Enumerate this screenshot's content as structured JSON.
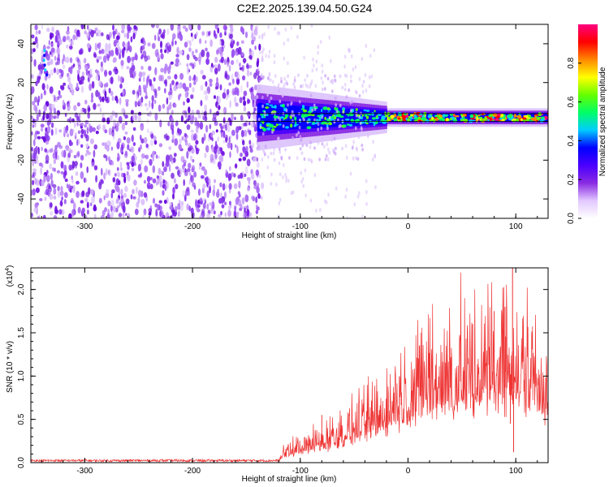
{
  "title": "C2E2.2025.139.04.50.G24",
  "chart_data": [
    {
      "type": "heatmap",
      "xlabel": "Height of straight line (km)",
      "ylabel": "Frequency (Hz)",
      "xlim": [
        -350,
        130
      ],
      "ylim": [
        -50,
        50
      ],
      "x_ticks": [
        "-300",
        "-200",
        "-100",
        "0",
        "100"
      ],
      "y_ticks": [
        "-40",
        "-20",
        "0",
        "20",
        "40"
      ],
      "colorbar": {
        "label": "Normalized spectral amplitude",
        "range": [
          0,
          1
        ],
        "ticks": [
          "0.0",
          "0.2",
          "0.4",
          "0.6",
          "0.8"
        ],
        "colors": [
          "#ffffff",
          "#e2c8ff",
          "#8a2be2",
          "#4b00ff",
          "#0000ff",
          "#00ccff",
          "#00ff66",
          "#66ff00",
          "#ffff00",
          "#ff8800",
          "#ff0000",
          "#ff0080"
        ]
      },
      "regions": {
        "noise_x_range": [
          -350,
          -135
        ],
        "signal_x_range": [
          -140,
          130
        ],
        "band_freq_center_hz": 2,
        "reference_line_hz": [
          0,
          4
        ]
      }
    },
    {
      "type": "line",
      "xlabel": "Height of straight line (km)",
      "ylabel": "SNR (10 * v/v)",
      "multiplier": "(x10^4)",
      "multiplier_base": "(x10",
      "multiplier_exp": "4",
      "xlim": [
        -350,
        130
      ],
      "ylim": [
        0,
        2.25
      ],
      "x_ticks": [
        "-300",
        "-200",
        "-100",
        "0",
        "100"
      ],
      "y_ticks": [
        "0.0",
        "0.5",
        "1.0",
        "1.5",
        "2.0"
      ],
      "color": "#ee3333",
      "envelope": [
        {
          "x": -350,
          "y": 0.03
        },
        {
          "x": -200,
          "y": 0.03
        },
        {
          "x": -120,
          "y": 0.03
        },
        {
          "x": -115,
          "y": 0.13
        },
        {
          "x": -100,
          "y": 0.22
        },
        {
          "x": -80,
          "y": 0.3
        },
        {
          "x": -60,
          "y": 0.42
        },
        {
          "x": -40,
          "y": 0.6
        },
        {
          "x": -20,
          "y": 0.75
        },
        {
          "x": 0,
          "y": 1.05
        },
        {
          "x": 20,
          "y": 1.15
        },
        {
          "x": 40,
          "y": 1.22
        },
        {
          "x": 60,
          "y": 1.25
        },
        {
          "x": 80,
          "y": 1.35
        },
        {
          "x": 95,
          "y": 1.5
        },
        {
          "x": 100,
          "y": 1.3
        },
        {
          "x": 110,
          "y": 1.25
        },
        {
          "x": 130,
          "y": 1.1
        }
      ],
      "spikes": [
        {
          "x": 80,
          "y": 1.75
        },
        {
          "x": 90,
          "y": 1.8
        },
        {
          "x": 97,
          "y": 2.25
        },
        {
          "x": 98,
          "y": 0.12
        },
        {
          "x": 95,
          "y": 0.45
        },
        {
          "x": 60,
          "y": 1.6
        },
        {
          "x": -8,
          "y": 1.0
        },
        {
          "x": -80,
          "y": 0.55
        }
      ]
    }
  ]
}
